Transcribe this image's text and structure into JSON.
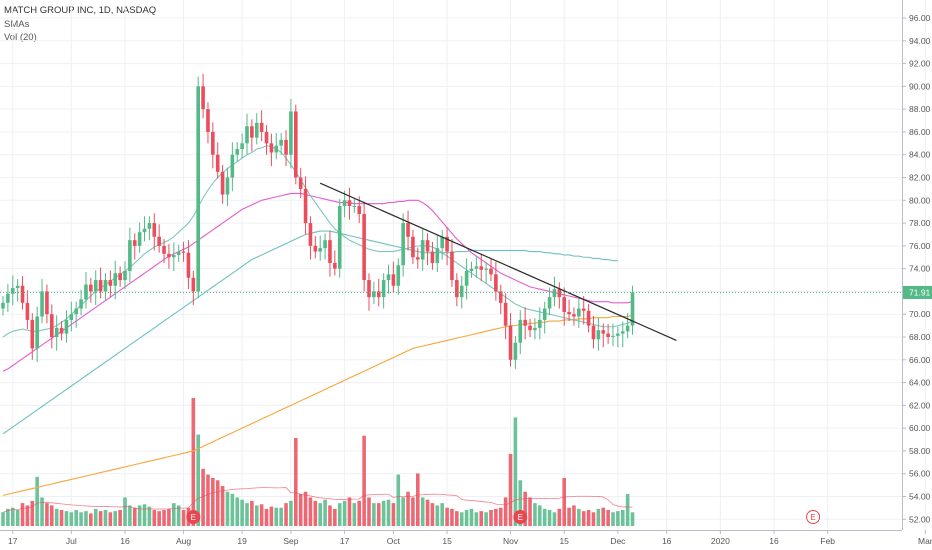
{
  "header": {
    "symbol_title": "MATCH GROUP INC, 1D, NASDAQ",
    "indicator_smas": "SMAs",
    "indicator_vol": "Vol (20)"
  },
  "colors": {
    "up": "#53b987",
    "down": "#eb4d5c",
    "sma_fast": "#7fc6c1",
    "sma_mid": "#e65dcf",
    "sma_slow": "#6fc0c3",
    "sma_long": "#f7a63b",
    "trendline": "#2a2a2a",
    "price_badge": "#53b987",
    "earnings": "#e8474f",
    "grid": "#eef0f3",
    "axis_text": "#555555"
  },
  "chart_data": {
    "type": "candlestick",
    "title": "MATCH GROUP INC, 1D, NASDAQ",
    "ylim": [
      51.5,
      97
    ],
    "y_ticks": [
      "52.00",
      "54.00",
      "56.00",
      "58.00",
      "60.00",
      "62.00",
      "64.00",
      "66.00",
      "68.00",
      "70.00",
      "72.00",
      "74.00",
      "76.00",
      "78.00",
      "80.00",
      "82.00",
      "84.00",
      "86.00",
      "88.00",
      "90.00",
      "92.00",
      "94.00",
      "96.00"
    ],
    "x_ticks": [
      {
        "label": "17",
        "index": 2
      },
      {
        "label": "Jul",
        "index": 14
      },
      {
        "label": "16",
        "index": 25
      },
      {
        "label": "Aug",
        "index": 37
      },
      {
        "label": "19",
        "index": 49
      },
      {
        "label": "Sep",
        "index": 59
      },
      {
        "label": "17",
        "index": 70
      },
      {
        "label": "Oct",
        "index": 80
      },
      {
        "label": "15",
        "index": 91
      },
      {
        "label": "Nov",
        "index": 104
      },
      {
        "label": "15",
        "index": 115
      },
      {
        "label": "Dec",
        "index": 126
      },
      {
        "label": "16",
        "index": 136
      },
      {
        "label": "2020",
        "index": 147
      },
      {
        "label": "16",
        "index": 158
      },
      {
        "label": "Feb",
        "index": 169
      },
      {
        "label": "Mar",
        "index": 189
      }
    ],
    "last_price_label": "71.91",
    "last_price": 71.91,
    "earnings_label": "E",
    "earnings_markers": [
      {
        "index": 39,
        "kind": "past"
      },
      {
        "index": 106,
        "kind": "past"
      },
      {
        "index": 166,
        "kind": "future"
      }
    ],
    "closes": [
      71.0,
      71.8,
      72.3,
      72.5,
      71.0,
      69.5,
      67.0,
      69.8,
      72.0,
      70.0,
      68.0,
      68.8,
      68.3,
      69.5,
      70.0,
      70.5,
      71.3,
      72.6,
      72.0,
      73.0,
      72.0,
      73.0,
      72.5,
      73.6,
      73.0,
      73.8,
      76.5,
      76.0,
      77.2,
      77.5,
      78.0,
      76.8,
      76.0,
      75.3,
      75.0,
      75.2,
      75.5,
      75.4,
      73.2,
      72.0,
      90.0,
      88.0,
      86.0,
      84.0,
      82.5,
      80.5,
      82.0,
      84.0,
      84.5,
      85.0,
      86.5,
      85.5,
      86.8,
      86.0,
      85.0,
      84.2,
      84.8,
      85.3,
      84.0,
      87.8,
      82.0,
      81.0,
      78.0,
      76.0,
      75.5,
      75.8,
      76.5,
      74.5,
      74.0,
      79.5,
      80.0,
      79.5,
      79.5,
      78.8,
      73.0,
      71.5,
      72.0,
      71.5,
      73.0,
      73.5,
      72.5,
      74.3,
      78.0,
      76.8,
      75.0,
      74.8,
      76.5,
      75.5,
      74.5,
      75.8,
      76.8,
      75.5,
      73.0,
      71.5,
      72.5,
      73.8,
      74.0,
      74.2,
      73.9,
      74.0,
      73.5,
      72.0,
      71.0,
      69.0,
      66.0,
      67.5,
      69.5,
      69.0,
      68.6,
      68.8,
      69.5,
      70.5,
      71.5,
      72.2,
      71.5,
      70.2,
      70.0,
      69.8,
      70.5,
      70.3,
      69.0,
      67.8,
      68.6,
      68.3,
      68.0,
      68.1,
      68.3,
      68.5,
      69.0,
      71.91
    ],
    "volumes": [
      1.2,
      1.5,
      1.6,
      1.4,
      2.0,
      1.8,
      2.2,
      4.3,
      2.5,
      2.0,
      1.8,
      1.5,
      1.4,
      1.3,
      1.2,
      1.4,
      1.2,
      1.3,
      1.1,
      1.5,
      1.3,
      1.4,
      1.2,
      1.3,
      1.4,
      2.5,
      1.8,
      1.6,
      1.8,
      1.9,
      1.7,
      1.4,
      1.3,
      1.4,
      1.5,
      2.0,
      1.8,
      1.4,
      1.6,
      11.2,
      8.0,
      5.0,
      4.5,
      4.2,
      4.0,
      3.5,
      3.0,
      2.8,
      2.5,
      2.3,
      2.0,
      2.2,
      1.8,
      1.9,
      1.5,
      1.7,
      1.6,
      1.6,
      2.0,
      2.2,
      7.7,
      2.8,
      3.0,
      2.5,
      2.2,
      2.0,
      2.3,
      1.8,
      1.5,
      2.0,
      2.2,
      2.5,
      2.0,
      2.2,
      7.9,
      2.5,
      2.0,
      2.0,
      2.2,
      2.3,
      2.0,
      4.5,
      2.5,
      3.0,
      2.5,
      4.6,
      2.5,
      2.3,
      2.0,
      1.8,
      2.0,
      1.6,
      1.5,
      1.3,
      1.2,
      1.4,
      1.5,
      1.2,
      1.3,
      1.2,
      1.4,
      1.5,
      1.6,
      2.5,
      6.3,
      9.5,
      4.0,
      3.0,
      2.5,
      2.0,
      1.8,
      1.5,
      1.4,
      1.2,
      1.5,
      4.2,
      1.6,
      1.8,
      1.5,
      1.3,
      1.4,
      1.2,
      1.5,
      1.6,
      1.4,
      1.2,
      1.3,
      1.4,
      2.8,
      1.2
    ],
    "volume_unit_note": "",
    "sma_short": [
      68.0,
      68.3,
      68.5,
      68.6,
      68.7,
      68.6,
      68.5,
      68.5,
      68.6,
      68.7,
      68.8,
      69.0,
      69.3,
      69.6,
      70.0,
      70.4,
      70.8,
      71.2,
      71.6,
      72.0,
      72.3,
      72.6,
      72.9,
      73.2,
      73.5,
      73.8,
      74.1,
      74.5,
      74.9,
      75.3,
      75.6,
      75.9,
      76.1,
      76.3,
      76.5,
      76.8,
      77.2,
      77.6,
      78.0,
      78.6,
      79.4,
      80.2,
      80.9,
      81.5,
      82.0,
      82.4,
      82.8,
      83.1,
      83.4,
      83.7,
      84.0,
      84.2,
      84.5,
      84.6,
      84.8,
      84.7,
      84.5,
      84.2,
      83.7,
      83.1,
      82.5,
      81.8,
      81.1,
      80.4,
      79.8,
      79.2,
      78.6,
      78.0,
      77.5,
      77.1,
      76.8,
      76.5,
      76.3,
      76.1,
      75.9,
      75.7,
      75.6,
      75.5,
      75.5,
      75.5,
      75.5,
      75.6,
      75.7,
      75.8,
      75.9,
      76.0,
      76.0,
      76.0,
      75.9,
      75.7,
      75.4,
      75.1,
      74.8,
      74.5,
      74.2,
      73.9,
      73.6,
      73.3,
      73.0,
      72.7,
      72.4,
      72.1,
      71.8,
      71.5,
      71.2,
      70.9,
      70.7,
      70.5,
      70.4,
      70.3,
      70.2,
      70.1,
      70.0,
      69.9,
      69.8,
      69.7,
      69.6,
      69.5,
      69.4,
      69.3,
      69.2,
      69.1,
      69.0,
      68.9,
      68.9,
      68.9,
      69.0,
      69.1,
      69.2,
      69.4
    ],
    "sma_mid": [
      65.0,
      65.2,
      65.5,
      65.8,
      66.1,
      66.4,
      66.7,
      67.0,
      67.3,
      67.6,
      67.9,
      68.2,
      68.5,
      68.8,
      69.1,
      69.4,
      69.7,
      70.0,
      70.3,
      70.6,
      70.9,
      71.2,
      71.5,
      71.8,
      72.1,
      72.4,
      72.7,
      73.0,
      73.3,
      73.6,
      73.9,
      74.2,
      74.5,
      74.8,
      75.1,
      75.3,
      75.5,
      75.7,
      75.9,
      76.2,
      76.5,
      76.8,
      77.1,
      77.4,
      77.7,
      78.0,
      78.3,
      78.6,
      78.9,
      79.2,
      79.4,
      79.6,
      79.8,
      80.0,
      80.1,
      80.2,
      80.3,
      80.4,
      80.5,
      80.6,
      80.6,
      80.6,
      80.5,
      80.4,
      80.3,
      80.2,
      80.1,
      80.0,
      79.9,
      79.8,
      79.8,
      79.8,
      79.7,
      79.7,
      79.7,
      79.7,
      79.7,
      79.7,
      79.7,
      79.8,
      79.8,
      79.9,
      79.9,
      80.0,
      80.0,
      80.0,
      79.8,
      79.5,
      79.1,
      78.6,
      78.1,
      77.6,
      77.1,
      76.6,
      76.2,
      75.8,
      75.4,
      75.1,
      74.8,
      74.5,
      74.2,
      73.9,
      73.6,
      73.4,
      73.2,
      73.0,
      72.8,
      72.6,
      72.4,
      72.3,
      72.2,
      72.1,
      72.0,
      71.9,
      71.8,
      71.7,
      71.6,
      71.5,
      71.4,
      71.3,
      71.2,
      71.1,
      71.1,
      71.1,
      71.1,
      71.0,
      71.0,
      71.0,
      71.0,
      71.1
    ],
    "sma_slow": [
      59.5,
      59.8,
      60.1,
      60.4,
      60.7,
      61.0,
      61.3,
      61.6,
      61.9,
      62.2,
      62.5,
      62.8,
      63.1,
      63.4,
      63.7,
      64.0,
      64.3,
      64.6,
      64.9,
      65.2,
      65.5,
      65.8,
      66.1,
      66.4,
      66.7,
      67.0,
      67.3,
      67.6,
      67.9,
      68.2,
      68.5,
      68.8,
      69.1,
      69.4,
      69.7,
      70.0,
      70.3,
      70.6,
      70.9,
      71.2,
      71.5,
      71.8,
      72.1,
      72.4,
      72.7,
      73.0,
      73.3,
      73.6,
      73.9,
      74.2,
      74.5,
      74.8,
      75.0,
      75.2,
      75.4,
      75.6,
      75.8,
      76.0,
      76.2,
      76.4,
      76.6,
      76.8,
      77.0,
      77.1,
      77.2,
      77.3,
      77.3,
      77.3,
      77.2,
      77.1,
      77.0,
      76.9,
      76.8,
      76.7,
      76.6,
      76.5,
      76.4,
      76.3,
      76.2,
      76.1,
      76.0,
      75.9,
      75.8,
      75.7,
      75.6,
      75.5,
      75.4,
      75.4,
      75.4,
      75.4,
      75.4,
      75.4,
      75.4,
      75.5,
      75.5,
      75.5,
      75.6,
      75.6,
      75.6,
      75.6,
      75.6,
      75.6,
      75.6,
      75.6,
      75.6,
      75.6,
      75.6,
      75.6,
      75.5,
      75.5,
      75.5,
      75.4,
      75.4,
      75.3,
      75.3,
      75.2,
      75.2,
      75.1,
      75.1,
      75.0,
      75.0,
      74.9,
      74.9,
      74.8,
      74.8,
      74.7,
      74.7,
      74.6,
      74.6,
      74.6
    ],
    "sma_long": [
      54.1,
      54.2,
      54.3,
      54.4,
      54.5,
      54.6,
      54.7,
      54.8,
      54.9,
      55.0,
      55.1,
      55.2,
      55.3,
      55.4,
      55.5,
      55.6,
      55.7,
      55.8,
      55.9,
      56.0,
      56.1,
      56.2,
      56.3,
      56.4,
      56.5,
      56.6,
      56.7,
      56.8,
      56.9,
      57.0,
      57.1,
      57.2,
      57.3,
      57.4,
      57.5,
      57.6,
      57.7,
      57.8,
      57.9,
      58.0,
      58.2,
      58.4,
      58.6,
      58.8,
      59.0,
      59.2,
      59.4,
      59.6,
      59.8,
      60.0,
      60.2,
      60.4,
      60.6,
      60.8,
      61.0,
      61.2,
      61.4,
      61.6,
      61.8,
      62.0,
      62.2,
      62.4,
      62.6,
      62.8,
      63.0,
      63.2,
      63.4,
      63.6,
      63.8,
      64.0,
      64.2,
      64.4,
      64.6,
      64.8,
      65.0,
      65.2,
      65.4,
      65.6,
      65.8,
      66.0,
      66.2,
      66.4,
      66.6,
      66.8,
      67.0,
      67.1,
      67.2,
      67.3,
      67.4,
      67.5,
      67.6,
      67.7,
      67.8,
      67.9,
      68.0,
      68.1,
      68.2,
      68.3,
      68.4,
      68.5,
      68.6,
      68.7,
      68.8,
      68.9,
      69.0,
      69.0,
      69.1,
      69.1,
      69.2,
      69.2,
      69.3,
      69.3,
      69.4,
      69.4,
      69.4,
      69.5,
      69.5,
      69.5,
      69.6,
      69.6,
      69.6,
      69.7,
      69.7,
      69.7,
      69.7,
      69.8,
      69.8,
      69.8,
      69.8,
      69.9
    ],
    "trendline": {
      "from": {
        "index": 65,
        "value": 81.5
      },
      "to": {
        "index": 138,
        "value": 67.7
      }
    },
    "sma_long_extension_end": {
      "index": 130,
      "value": 69.9
    },
    "sma_slow_end_index": 126,
    "grid": true,
    "legend_position": "top-left"
  }
}
